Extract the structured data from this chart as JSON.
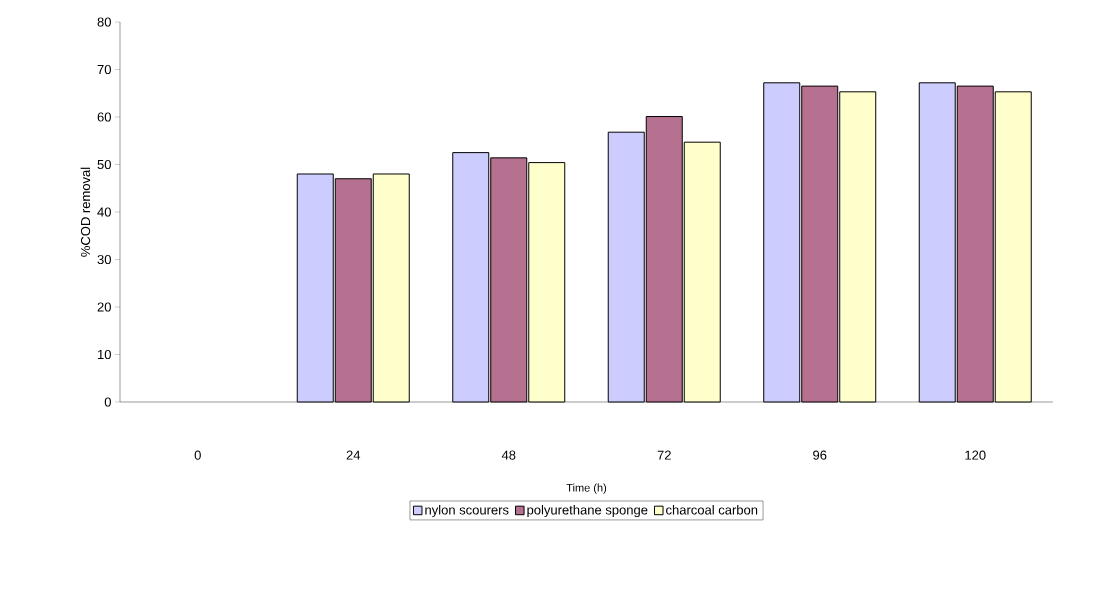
{
  "chart_data": {
    "type": "bar",
    "xlabel": "Time (h)",
    "ylabel": "%COD removal",
    "categories": [
      "0",
      "24",
      "48",
      "72",
      "96",
      "120"
    ],
    "series": [
      {
        "name": "nylon scourers",
        "color": "#ccccff",
        "values": [
          null,
          48,
          52.5,
          56.8,
          67.2,
          67.2
        ]
      },
      {
        "name": "polyurethane sponge",
        "color": "#b5718f",
        "values": [
          null,
          47,
          51.4,
          60.1,
          66.5,
          66.5
        ]
      },
      {
        "name": "charcoal carbon",
        "color": "#ffffcc",
        "values": [
          null,
          48,
          50.4,
          54.7,
          65.3,
          65.3
        ]
      }
    ],
    "ylim": [
      0,
      80
    ],
    "yticks": [
      0,
      10,
      20,
      30,
      40,
      50,
      60,
      70,
      80
    ],
    "grid": false,
    "legend": "bottom"
  }
}
